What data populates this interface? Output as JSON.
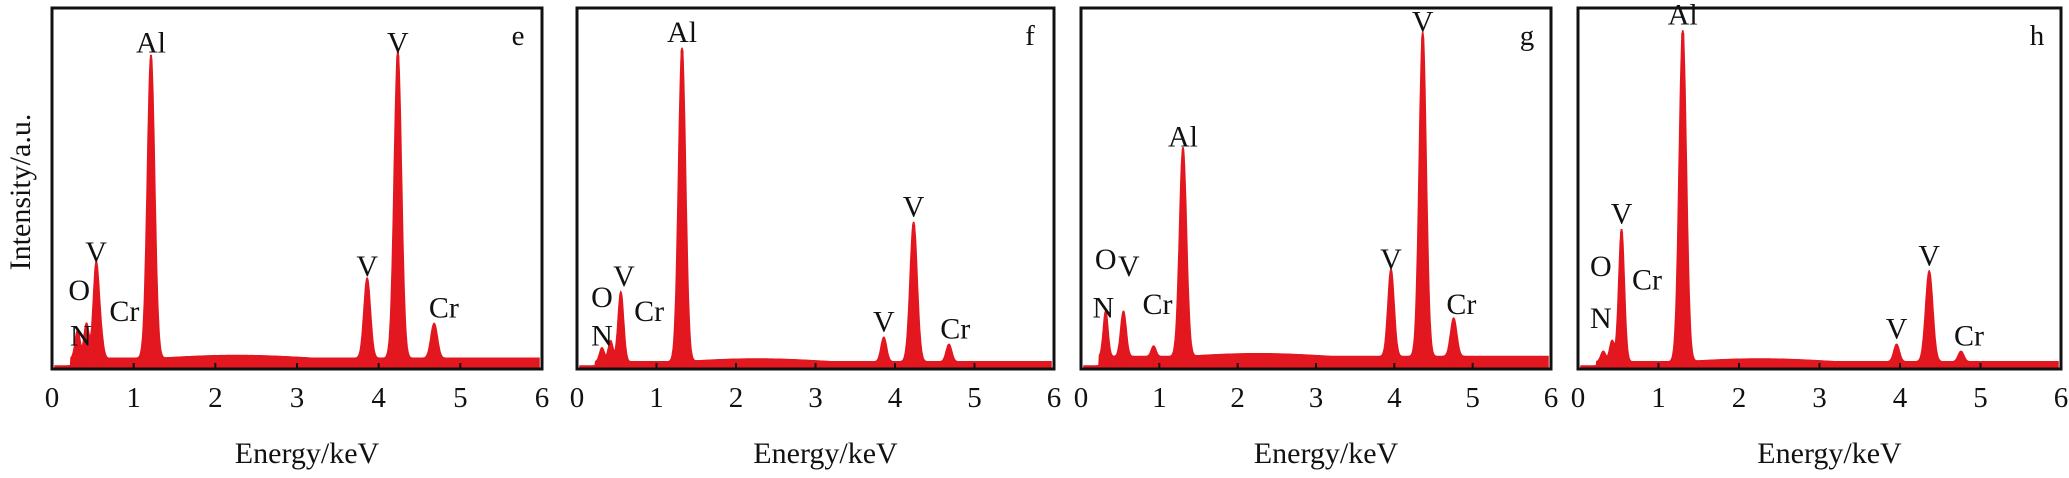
{
  "figure": {
    "ylabel": "Intensity/a.u.",
    "peak_color": "#e3171f",
    "frame_color": "#111111"
  },
  "chart_data": [
    {
      "type": "line",
      "panel": "e",
      "xlabel": "Energy/keV",
      "ylabel": "Intensity/a.u.",
      "xlim": [
        0,
        6
      ],
      "ylim": [
        0,
        100
      ],
      "xticks": [
        "0",
        "1",
        "2",
        "3",
        "4",
        "5",
        "6"
      ],
      "baseline": 2.5,
      "peaks": [
        {
          "x": 0.28,
          "y": 8,
          "w": 0.03
        },
        {
          "x": 0.39,
          "y": 10,
          "w": 0.03
        },
        {
          "x": 0.51,
          "y": 27,
          "w": 0.035
        },
        {
          "x": 0.57,
          "y": 5,
          "w": 0.03
        },
        {
          "x": 1.19,
          "y": 87,
          "w": 0.045
        },
        {
          "x": 3.87,
          "y": 23,
          "w": 0.04
        },
        {
          "x": 4.25,
          "y": 88,
          "w": 0.045
        },
        {
          "x": 4.7,
          "y": 10,
          "w": 0.04
        }
      ],
      "labels": [
        {
          "text": "Al",
          "x": 1.19,
          "y": 89
        },
        {
          "text": "V",
          "x": 4.25,
          "y": 89
        },
        {
          "text": "V",
          "x": 3.87,
          "y": 25
        },
        {
          "text": "Cr",
          "x": 4.82,
          "y": 13
        },
        {
          "text": "V",
          "x": 0.51,
          "y": 29
        },
        {
          "text": "O",
          "x": 0.3,
          "y": 18
        },
        {
          "text": "Cr",
          "x": 0.86,
          "y": 12
        },
        {
          "text": "N",
          "x": 0.32,
          "y": 5
        }
      ],
      "panel_letter": "e"
    },
    {
      "type": "line",
      "panel": "f",
      "xlabel": "Energy/keV",
      "ylabel": "",
      "xlim": [
        0,
        6
      ],
      "ylim": [
        0,
        100
      ],
      "xticks": [
        "0",
        "1",
        "2",
        "3",
        "4",
        "5",
        "6"
      ],
      "baseline": 1.5,
      "peaks": [
        {
          "x": 0.28,
          "y": 4,
          "w": 0.03
        },
        {
          "x": 0.39,
          "y": 6,
          "w": 0.03
        },
        {
          "x": 0.52,
          "y": 20,
          "w": 0.035
        },
        {
          "x": 1.3,
          "y": 90,
          "w": 0.045
        },
        {
          "x": 3.87,
          "y": 7,
          "w": 0.035
        },
        {
          "x": 4.25,
          "y": 40,
          "w": 0.045
        },
        {
          "x": 4.7,
          "y": 5,
          "w": 0.035
        }
      ],
      "labels": [
        {
          "text": "Al",
          "x": 1.3,
          "y": 92
        },
        {
          "text": "V",
          "x": 4.25,
          "y": 42
        },
        {
          "text": "V",
          "x": 3.87,
          "y": 9
        },
        {
          "text": "Cr",
          "x": 4.78,
          "y": 7
        },
        {
          "text": "V",
          "x": 0.56,
          "y": 22
        },
        {
          "text": "O",
          "x": 0.28,
          "y": 16
        },
        {
          "text": "Cr",
          "x": 0.88,
          "y": 12
        },
        {
          "text": "N",
          "x": 0.28,
          "y": 5
        }
      ],
      "panel_letter": "f"
    },
    {
      "type": "line",
      "panel": "g",
      "xlabel": "Energy/keV",
      "ylabel": "",
      "xlim": [
        0,
        6
      ],
      "ylim": [
        0,
        100
      ],
      "xticks": [
        "0",
        "1",
        "2",
        "3",
        "4",
        "5",
        "6"
      ],
      "baseline": 3,
      "peaks": [
        {
          "x": 0.28,
          "y": 13,
          "w": 0.03
        },
        {
          "x": 0.51,
          "y": 13,
          "w": 0.035
        },
        {
          "x": 0.9,
          "y": 3,
          "w": 0.03
        },
        {
          "x": 1.28,
          "y": 60,
          "w": 0.045
        },
        {
          "x": 3.97,
          "y": 25,
          "w": 0.04
        },
        {
          "x": 4.38,
          "y": 93,
          "w": 0.045
        },
        {
          "x": 4.78,
          "y": 11,
          "w": 0.04
        }
      ],
      "labels": [
        {
          "text": "Al",
          "x": 1.28,
          "y": 62
        },
        {
          "text": "V",
          "x": 4.38,
          "y": 95
        },
        {
          "text": "V",
          "x": 3.97,
          "y": 27
        },
        {
          "text": "Cr",
          "x": 4.88,
          "y": 14
        },
        {
          "text": "V",
          "x": 0.58,
          "y": 25
        },
        {
          "text": "O",
          "x": 0.28,
          "y": 27
        },
        {
          "text": "Cr",
          "x": 0.95,
          "y": 14
        },
        {
          "text": "N",
          "x": 0.25,
          "y": 13
        }
      ],
      "panel_letter": "g"
    },
    {
      "type": "line",
      "panel": "h",
      "xlabel": "Energy/keV",
      "ylabel": "",
      "xlim": [
        0,
        6
      ],
      "ylim": [
        0,
        100
      ],
      "xticks": [
        "0",
        "1",
        "2",
        "3",
        "4",
        "5",
        "6"
      ],
      "baseline": 1.5,
      "peaks": [
        {
          "x": 0.28,
          "y": 3,
          "w": 0.03
        },
        {
          "x": 0.39,
          "y": 6,
          "w": 0.03
        },
        {
          "x": 0.51,
          "y": 38,
          "w": 0.035
        },
        {
          "x": 1.28,
          "y": 95,
          "w": 0.045
        },
        {
          "x": 3.97,
          "y": 5,
          "w": 0.035
        },
        {
          "x": 4.38,
          "y": 26,
          "w": 0.045
        },
        {
          "x": 4.78,
          "y": 3,
          "w": 0.035
        }
      ],
      "labels": [
        {
          "text": "Al",
          "x": 1.28,
          "y": 97
        },
        {
          "text": "V",
          "x": 4.38,
          "y": 28
        },
        {
          "text": "V",
          "x": 3.97,
          "y": 7
        },
        {
          "text": "Cr",
          "x": 4.88,
          "y": 5
        },
        {
          "text": "V",
          "x": 0.51,
          "y": 40
        },
        {
          "text": "O",
          "x": 0.25,
          "y": 25
        },
        {
          "text": "Cr",
          "x": 0.83,
          "y": 21
        },
        {
          "text": "N",
          "x": 0.25,
          "y": 10
        }
      ],
      "panel_letter": "h"
    }
  ]
}
